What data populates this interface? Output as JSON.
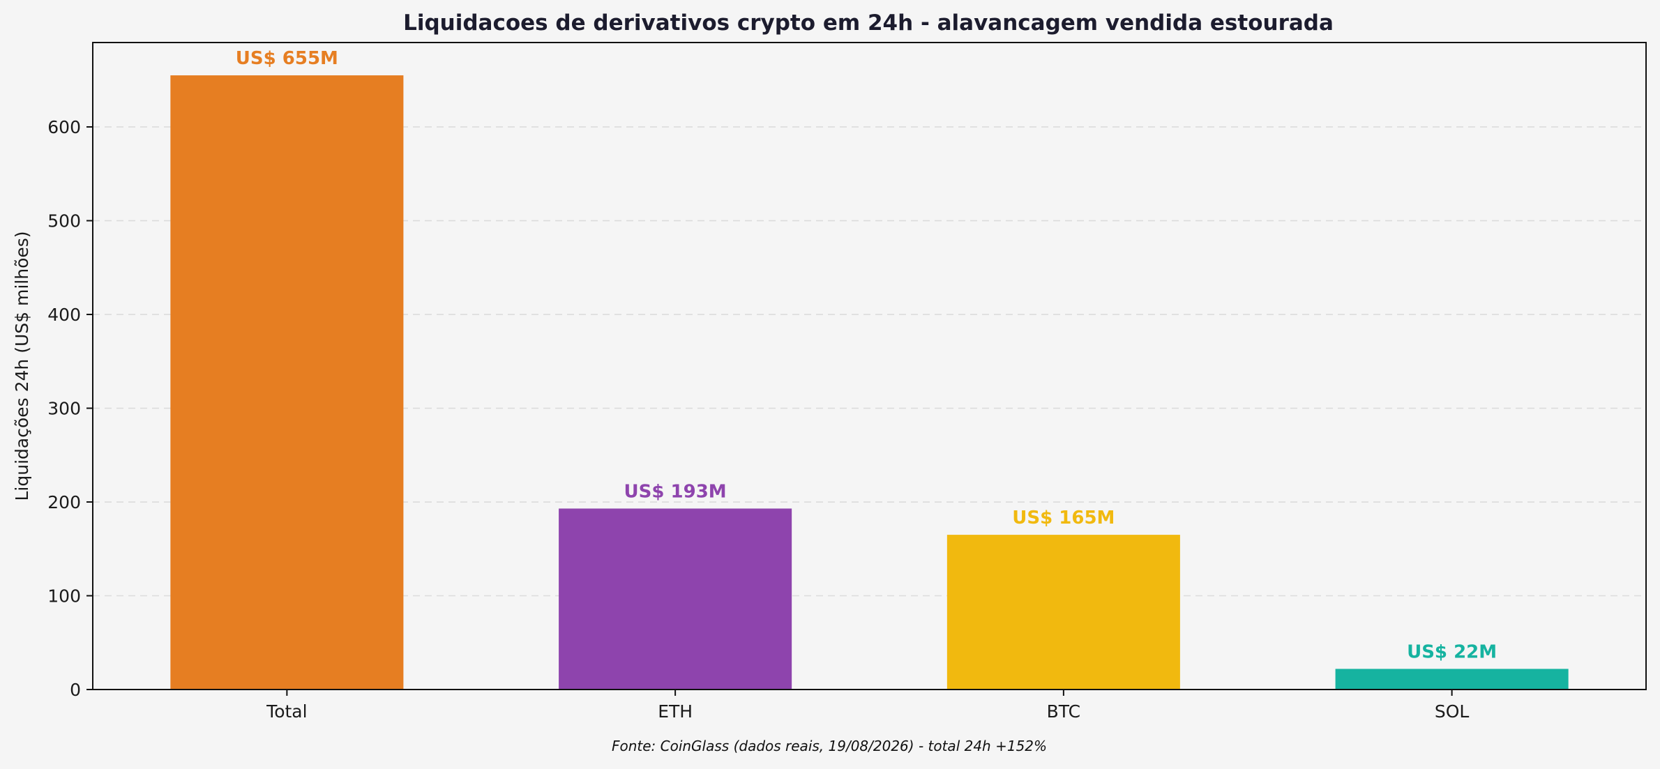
{
  "chart_data": {
    "type": "bar",
    "title": "Liquidacoes de derivativos crypto em 24h - alavancagem vendida estourada",
    "xlabel": "",
    "ylabel": "Liquidações 24h (US$ milhões)",
    "categories": [
      "Total",
      "ETH",
      "BTC",
      "SOL"
    ],
    "values": [
      655,
      193,
      165,
      22
    ],
    "value_labels": [
      "US$ 655M",
      "US$ 193M",
      "US$ 165M",
      "US$ 22M"
    ],
    "colors": [
      "#e67e22",
      "#8e44ad",
      "#f1b90f",
      "#16b3a0"
    ],
    "ylim": [
      0,
      690
    ],
    "yticks": [
      0,
      100,
      200,
      300,
      400,
      500,
      600
    ],
    "grid": "horizontal dashed",
    "footnote": "Fonte: CoinGlass (dados reais, 19/08/2026) - total 24h +152%"
  }
}
